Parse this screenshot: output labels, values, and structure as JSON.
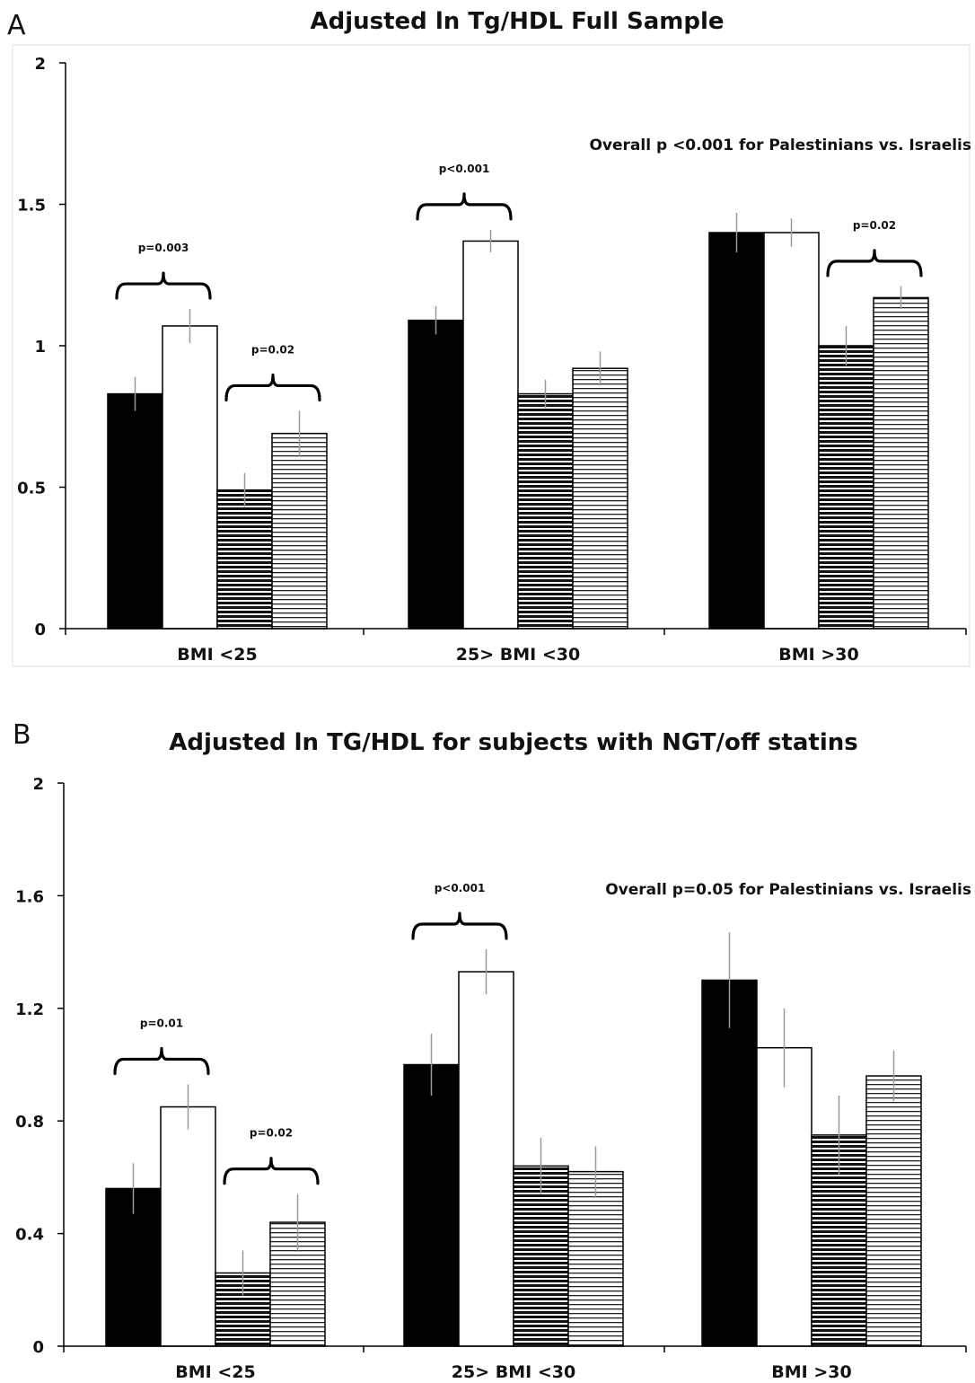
{
  "chart_data": [
    {
      "panel": "A",
      "type": "bar",
      "title": "Adjusted ln Tg/HDL Full Sample",
      "xlabel": "",
      "ylabel": "",
      "ylim": [
        0,
        2
      ],
      "yticks": [
        "0",
        "0.5",
        "1",
        "1.5",
        "2"
      ],
      "ytick_values": [
        0,
        0.5,
        1,
        1.5,
        2
      ],
      "categories": [
        "BMI <25",
        "25> BMI <30",
        "BMI >30"
      ],
      "series": [
        {
          "style": "solid",
          "values": [
            0.83,
            1.09,
            1.4
          ],
          "errors": [
            0.06,
            0.05,
            0.07
          ]
        },
        {
          "style": "white",
          "values": [
            1.07,
            1.37,
            1.4
          ],
          "errors": [
            0.06,
            0.04,
            0.05
          ]
        },
        {
          "style": "dense-stripes",
          "values": [
            0.49,
            0.83,
            1.0
          ],
          "errors": [
            0.06,
            0.05,
            0.07
          ]
        },
        {
          "style": "sparse-stripes",
          "values": [
            0.69,
            0.92,
            1.17
          ],
          "errors": [
            0.08,
            0.06,
            0.04
          ]
        }
      ],
      "annotations": [
        {
          "label": "p=0.003",
          "category": 0,
          "pair": [
            0,
            1
          ]
        },
        {
          "label": "p=0.02",
          "category": 0,
          "pair": [
            2,
            3
          ]
        },
        {
          "label": "p<0.001",
          "category": 1,
          "pair": [
            0,
            1
          ]
        },
        {
          "label": "p=0.02",
          "category": 2,
          "pair": [
            2,
            3
          ]
        }
      ],
      "note": "Overall p <0.001 for Palestinians vs. Israelis",
      "grid": false
    },
    {
      "panel": "B",
      "type": "bar",
      "title": "Adjusted ln TG/HDL for subjects with NGT/off statins",
      "xlabel": "",
      "ylabel": "",
      "ylim": [
        0,
        2
      ],
      "yticks": [
        "0",
        "0.4",
        "0.8",
        "1.2",
        "1.6",
        "2"
      ],
      "ytick_values": [
        0,
        0.4,
        0.8,
        1.2,
        1.6,
        2
      ],
      "categories": [
        "BMI <25",
        "25> BMI <30",
        "BMI >30"
      ],
      "series": [
        {
          "style": "solid",
          "values": [
            0.56,
            1.0,
            1.3
          ],
          "errors": [
            0.09,
            0.11,
            0.17
          ]
        },
        {
          "style": "white",
          "values": [
            0.85,
            1.33,
            1.06
          ],
          "errors": [
            0.08,
            0.08,
            0.14
          ]
        },
        {
          "style": "dense-stripes",
          "values": [
            0.26,
            0.64,
            0.75
          ],
          "errors": [
            0.08,
            0.1,
            0.14
          ]
        },
        {
          "style": "sparse-stripes",
          "values": [
            0.44,
            0.62,
            0.96
          ],
          "errors": [
            0.1,
            0.09,
            0.09
          ]
        }
      ],
      "annotations": [
        {
          "label": "p=0.01",
          "category": 0,
          "pair": [
            0,
            1
          ]
        },
        {
          "label": "p=0.02",
          "category": 0,
          "pair": [
            2,
            3
          ]
        },
        {
          "label": "p<0.001",
          "category": 1,
          "pair": [
            0,
            1
          ]
        }
      ],
      "note": "Overall p=0.05 for Palestinians vs. Israelis",
      "grid": false
    }
  ]
}
